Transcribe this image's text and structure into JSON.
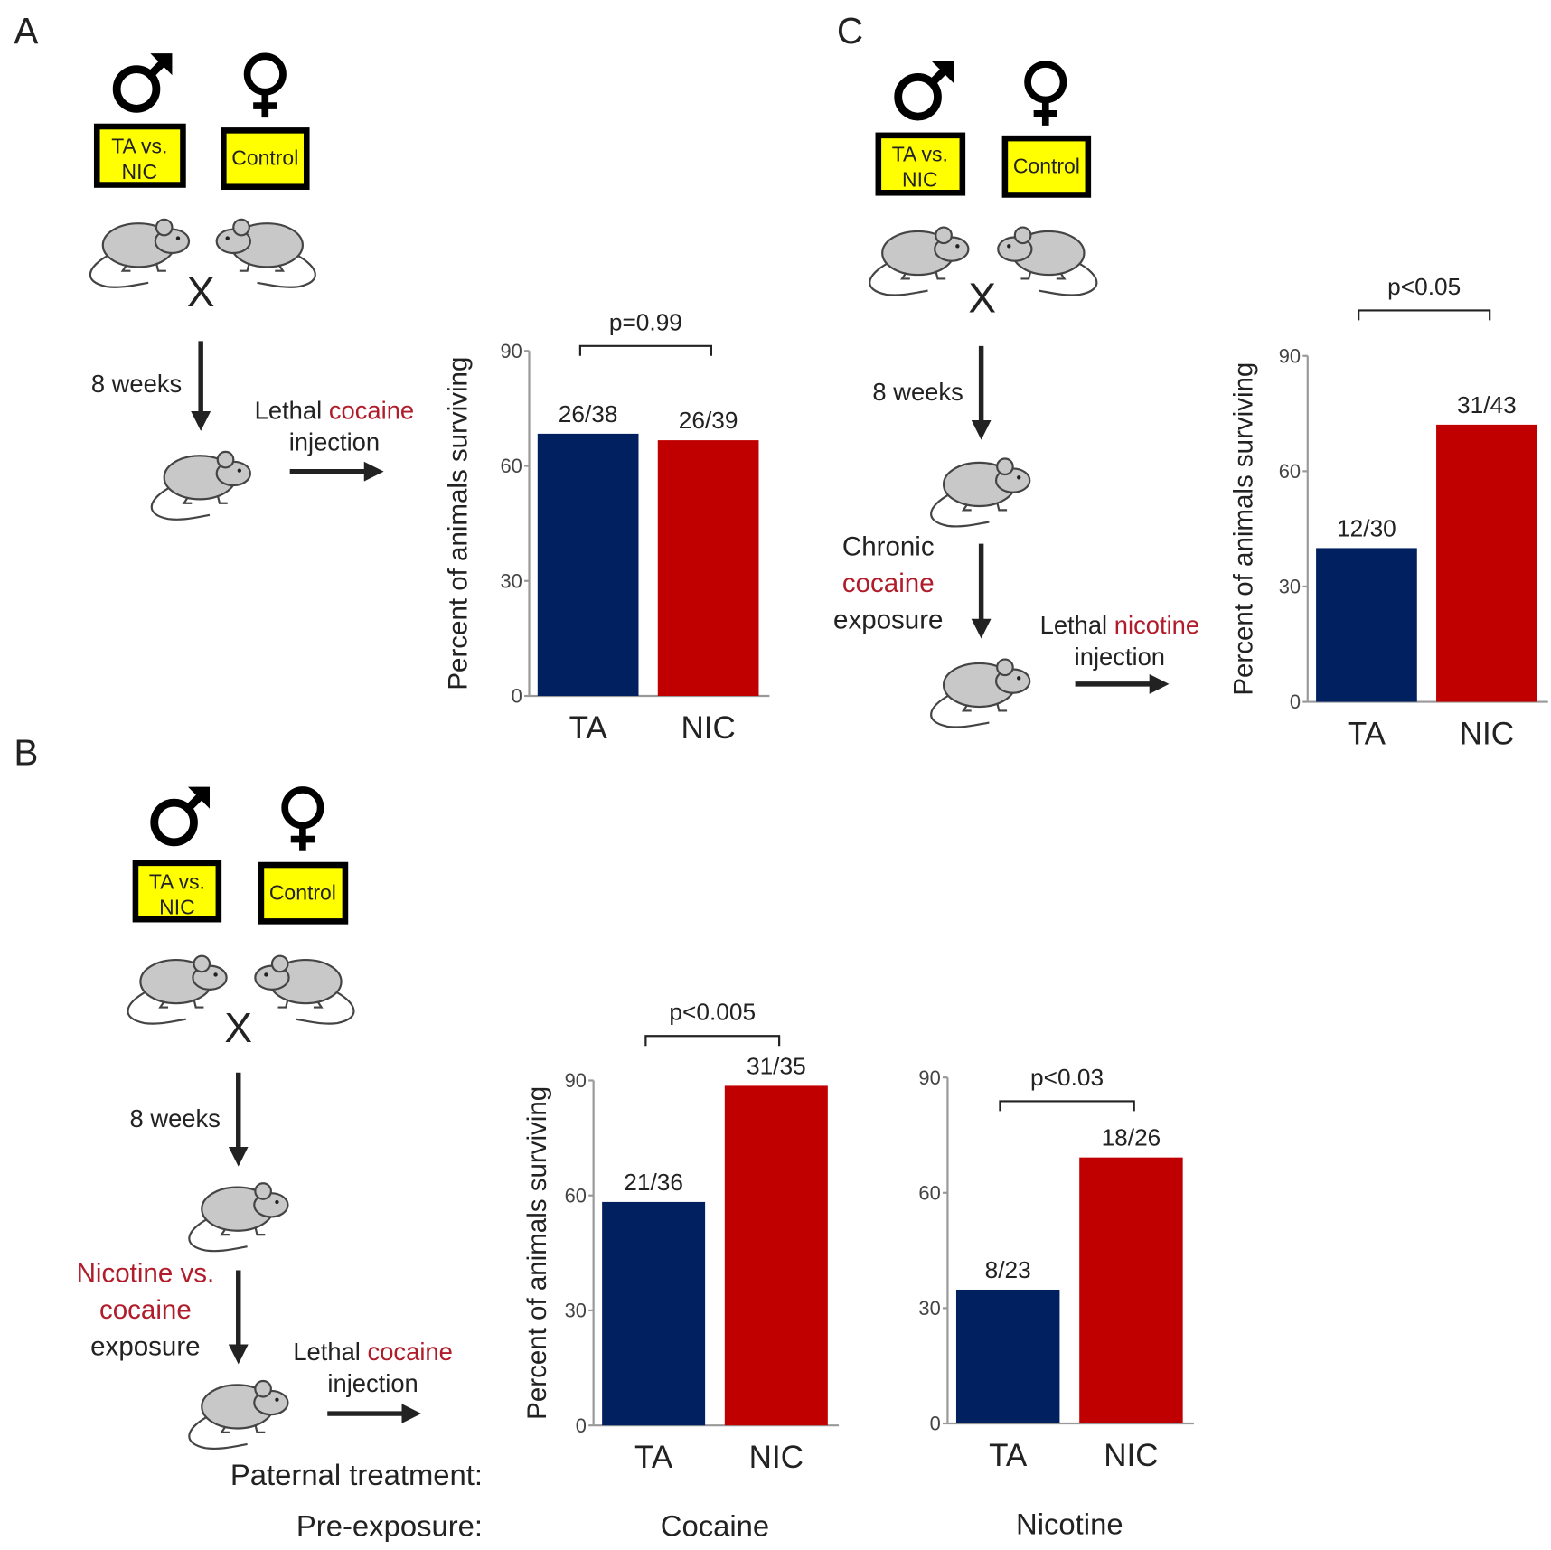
{
  "panel_a": {
    "label": "A",
    "male_box": [
      "TA vs.",
      "NIC"
    ],
    "female_box": "Control",
    "cross": "X",
    "interval": "8 weeks",
    "injection": [
      "Lethal",
      "cocaine",
      "injection"
    ]
  },
  "panel_b": {
    "label": "B",
    "male_box": [
      "TA vs.",
      "NIC"
    ],
    "female_box": "Control",
    "cross": "X",
    "interval": "8 weeks",
    "exposure": [
      "Nicotine vs.",
      "cocaine",
      "exposure"
    ],
    "injection": [
      "Lethal",
      "cocaine",
      "injection"
    ],
    "row_labels": [
      "Paternal treatment:",
      "Pre-exposure:"
    ]
  },
  "panel_c": {
    "label": "C",
    "male_box": [
      "TA vs.",
      "NIC"
    ],
    "female_box": "Control",
    "cross": "X",
    "interval": "8 weeks",
    "exposure": [
      "Chronic",
      "cocaine",
      "exposure"
    ],
    "injection": [
      "Lethal",
      "nicotine",
      "injection"
    ]
  },
  "chart_data": [
    {
      "type": "bar",
      "ylabel": "Percent of animals surviving",
      "categories": [
        "TA",
        "NIC"
      ],
      "values": [
        68.4,
        66.7
      ],
      "value_labels": [
        "26/38",
        "26/39"
      ],
      "colors": [
        "#002060",
        "#c00000"
      ],
      "ylim": [
        0,
        90
      ],
      "yticks": [
        0,
        30,
        60,
        90
      ],
      "annotation": "p=0.99"
    },
    {
      "type": "bar",
      "ylabel": "Percent of animals surviving",
      "categories": [
        "TA",
        "NIC"
      ],
      "values": [
        40,
        72.1
      ],
      "value_labels": [
        "12/30",
        "31/43"
      ],
      "colors": [
        "#002060",
        "#c00000"
      ],
      "ylim": [
        0,
        90
      ],
      "yticks": [
        0,
        30,
        60,
        90
      ],
      "annotation": "p<0.05"
    },
    {
      "type": "bar",
      "ylabel": "Percent of animals surviving",
      "xlabel": "Cocaine",
      "categories": [
        "TA",
        "NIC"
      ],
      "values": [
        58.3,
        88.6
      ],
      "value_labels": [
        "21/36",
        "31/35"
      ],
      "colors": [
        "#002060",
        "#c00000"
      ],
      "ylim": [
        0,
        90
      ],
      "yticks": [
        0,
        30,
        60,
        90
      ],
      "annotation": "p<0.005"
    },
    {
      "type": "bar",
      "xlabel": "Nicotine",
      "categories": [
        "TA",
        "NIC"
      ],
      "values": [
        34.8,
        69.2
      ],
      "value_labels": [
        "8/23",
        "18/26"
      ],
      "colors": [
        "#002060",
        "#c00000"
      ],
      "ylim": [
        0,
        90
      ],
      "yticks": [
        0,
        30,
        60,
        90
      ],
      "annotation": "p<0.03"
    }
  ]
}
